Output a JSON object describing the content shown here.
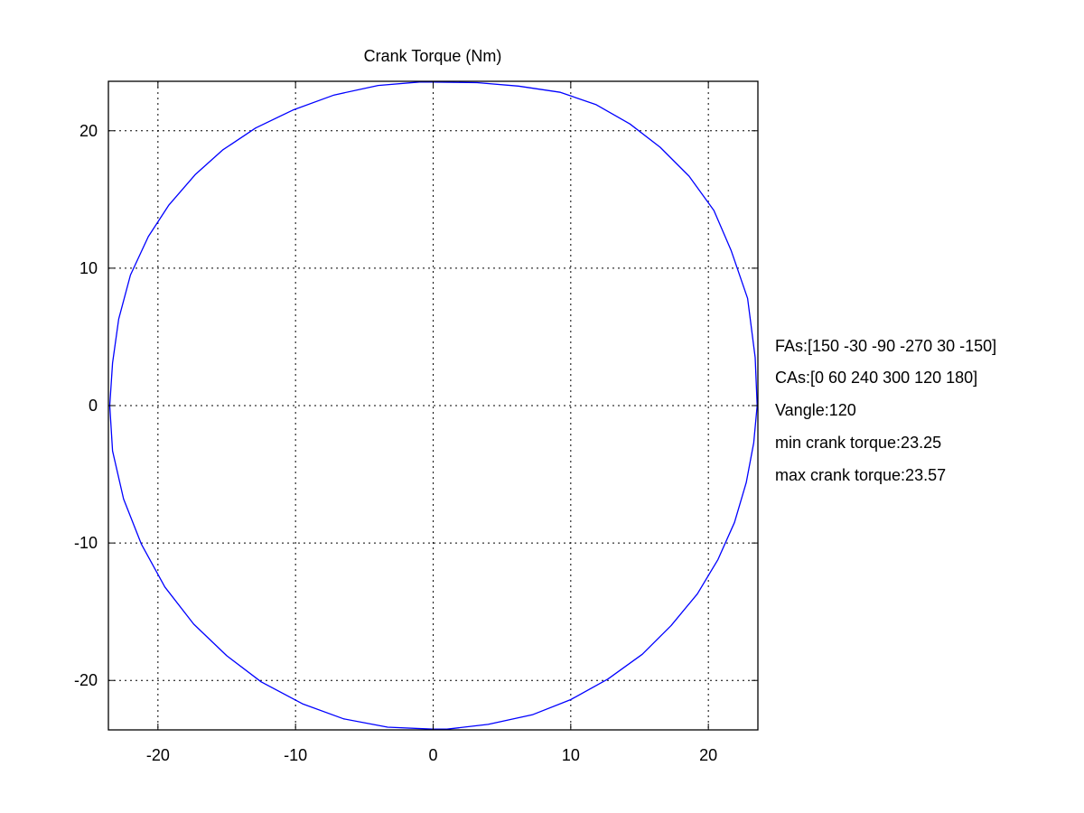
{
  "chart_data": {
    "type": "line",
    "title": "Crank Torque (Nm)",
    "xlabel": "",
    "ylabel": "",
    "xlim": [
      -23.6,
      23.6
    ],
    "ylim": [
      -23.6,
      23.6
    ],
    "grid": true,
    "xticks": [
      -20,
      -10,
      0,
      10,
      20
    ],
    "yticks": [
      -20,
      -10,
      0,
      10,
      20
    ],
    "xtick_labels": [
      "-20",
      "-10",
      "0",
      "10",
      "20"
    ],
    "ytick_labels": [
      "-20",
      "-10",
      "0",
      "10",
      "20"
    ],
    "series": [
      {
        "color": "#0000ff",
        "shape": "closed polar curve of crank torque magnitude vs crank angle",
        "x": [
          23.55,
          23.4,
          22.85,
          21.65,
          20.4,
          18.6,
          16.5,
          14.3,
          11.85,
          9.25,
          6.2,
          3.2,
          0.0,
          -1.0,
          -4.0,
          -7.2,
          -10.2,
          -12.9,
          -15.3,
          -17.3,
          -19.2,
          -20.7,
          -22.0,
          -22.85,
          -23.3,
          -23.5,
          -23.3,
          -22.5,
          -21.2,
          -19.5,
          -17.4,
          -15.0,
          -12.5,
          -9.5,
          -6.5,
          -3.3,
          0.0,
          1.0,
          4.0,
          7.2,
          10.0,
          12.7,
          15.2,
          17.3,
          19.2,
          20.7,
          21.9,
          22.75,
          23.3,
          23.55
        ],
        "y": [
          0.0,
          3.5,
          7.8,
          11.3,
          14.2,
          16.7,
          18.8,
          20.5,
          21.9,
          22.8,
          23.25,
          23.5,
          23.55,
          23.55,
          23.3,
          22.6,
          21.5,
          20.2,
          18.6,
          16.8,
          14.6,
          12.3,
          9.5,
          6.3,
          3.1,
          0.0,
          -3.3,
          -6.8,
          -10.1,
          -13.2,
          -15.9,
          -18.2,
          -20.1,
          -21.7,
          -22.8,
          -23.4,
          -23.55,
          -23.55,
          -23.2,
          -22.5,
          -21.4,
          -19.9,
          -18.1,
          -16.0,
          -13.7,
          -11.2,
          -8.5,
          -5.6,
          -2.7,
          0.0
        ]
      }
    ],
    "annotations": [
      "FAs:[150 -30 -90 -270 30 -150]",
      "CAs:[0 60 240 300 120 180]",
      "Vangle:120",
      "min crank torque:23.25",
      "max crank torque:23.57"
    ]
  }
}
